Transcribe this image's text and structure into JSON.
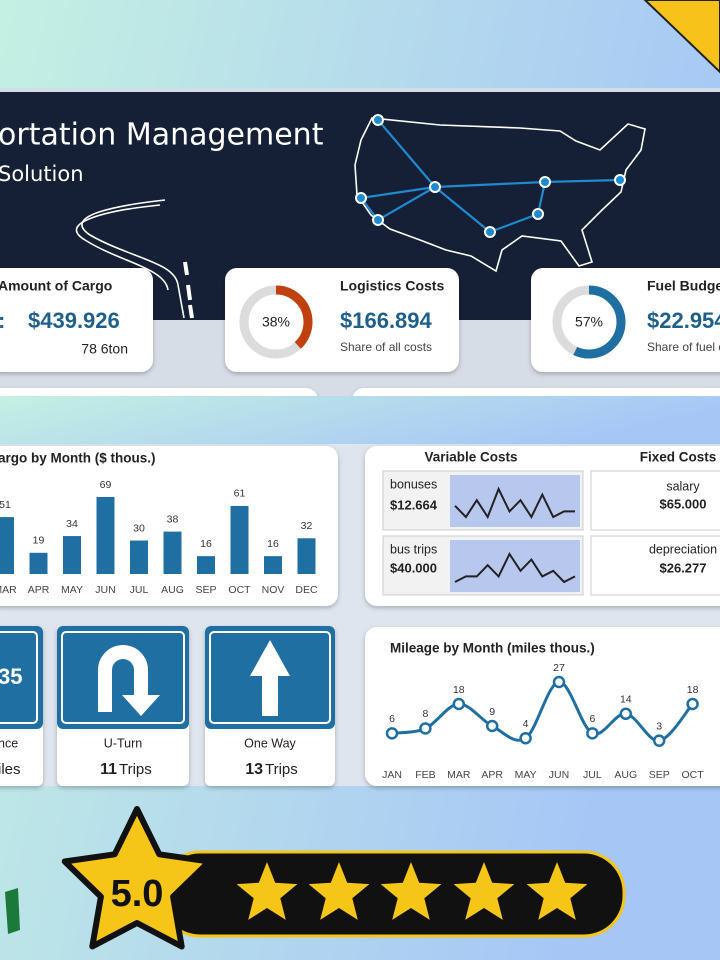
{
  "header": {
    "title": "ortation Management",
    "subtitle": "Solution"
  },
  "kpis": [
    {
      "title": "Amount of Cargo",
      "prefix": ":",
      "value": "$439.926",
      "note": "78 6ton"
    },
    {
      "title": "Logistics Costs",
      "percent": {
        "value": 38,
        "label": "38%"
      },
      "value": "$166.894",
      "note": "Share of all costs"
    },
    {
      "title": "Fuel Budge",
      "percent": {
        "value": 57,
        "label": "57%"
      },
      "value": "$22.954",
      "note": "Share of fuel c"
    }
  ],
  "chart_data": [
    {
      "type": "bar",
      "title": "argo by Month ($ thous.)",
      "color": "#1f6fa3",
      "categories": [
        "MAR",
        "APR",
        "MAY",
        "JUN",
        "JUL",
        "AUG",
        "SEP",
        "OCT",
        "NOV",
        "DEC"
      ],
      "values": [
        51,
        19,
        34,
        69,
        30,
        38,
        16,
        61,
        16,
        32
      ]
    },
    {
      "type": "line",
      "title": "Mileage by Month  (miles thous.)",
      "color": "#1f6fa3",
      "categories": [
        "JAN",
        "FEB",
        "MAR",
        "APR",
        "MAY",
        "JUN",
        "JUL",
        "AUG",
        "SEP",
        "OCT"
      ],
      "values": [
        6,
        8,
        18,
        9,
        4,
        27,
        6,
        14,
        3,
        18
      ]
    }
  ],
  "variable_costs": {
    "title": "Variable Costs",
    "items": [
      {
        "name": "bonuses",
        "value": "$12.664",
        "sparkline": [
          3,
          1,
          4,
          1,
          6,
          2,
          4,
          1,
          5,
          1,
          2,
          2
        ]
      },
      {
        "name": "bus trips",
        "value": "$40.000",
        "sparkline": [
          1,
          2,
          2,
          4,
          2,
          6,
          3,
          5,
          2,
          3,
          1,
          2
        ]
      }
    ]
  },
  "fixed_costs": {
    "title": "Fixed Costs",
    "items": [
      {
        "name": "salary",
        "value": "$65.000"
      },
      {
        "name": "depreciation",
        "value": "$26.277"
      }
    ]
  },
  "signs": [
    {
      "number": "35",
      "label": "nce",
      "unit": "iles"
    },
    {
      "label": "U-Turn",
      "count": 11,
      "unit": "Trips"
    },
    {
      "label": "One Way",
      "count": 13,
      "unit": "Trips"
    }
  ],
  "rating": "5.0"
}
